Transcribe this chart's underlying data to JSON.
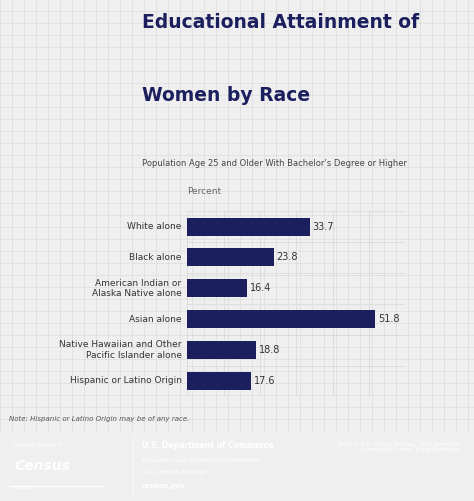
{
  "title_line1": "Educational Attainment of",
  "title_line2": "Women by Race",
  "subtitle": "Population Age 25 and Older With Bachelor’s Degree or Higher",
  "axis_label": "Percent",
  "categories": [
    "White alone",
    "Black alone",
    "American Indian or\nAlaska Native alone",
    "Asian alone",
    "Native Hawaiian and Other\nPacific Islander alone",
    "Hispanic or Latino Origin"
  ],
  "values": [
    33.7,
    23.8,
    16.4,
    51.8,
    18.8,
    17.6
  ],
  "bar_color": "#1b1f5e",
  "bg_color": "#efefef",
  "grid_color": "#d8d8d8",
  "footer_bg": "#d4622a",
  "title_color": "#1b1f5e",
  "subtitle_color": "#444444",
  "label_color": "#333333",
  "value_color": "#333333",
  "note_text": "Note: Hispanic or Latino Origin may be of any race.",
  "footer_left1": "United States®",
  "footer_left2": "Census",
  "footer_left3": "Bureau",
  "footer_mid1": "U.S. Department of Commerce",
  "footer_mid2": "Economics and Statistics Administration",
  "footer_mid3": "U.S. CENSUS BUREAU",
  "footer_mid4": "census.gov",
  "footer_right": "Source: U.S. Census Bureau, 2017 American\nCommunity Survey 1-Year Estimates",
  "xlim": [
    0,
    60
  ],
  "fig_width": 4.74,
  "fig_height": 5.01,
  "dpi": 100
}
